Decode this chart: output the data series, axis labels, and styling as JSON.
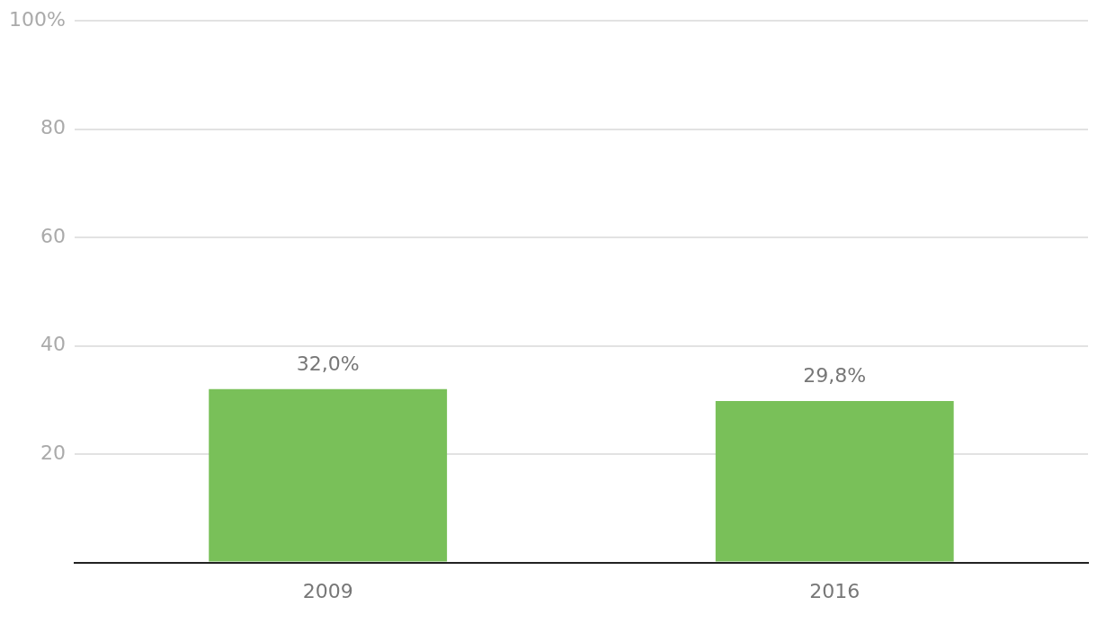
{
  "chart_data": {
    "type": "bar",
    "categories": [
      "2009",
      "2016"
    ],
    "values": [
      32.0,
      29.8
    ],
    "color": "#79c059",
    "value_labels": [
      "32,0%",
      "29,8%"
    ],
    "ylim": [
      0,
      100
    ],
    "yticks": [
      {
        "value": 0,
        "label": null
      },
      20,
      40,
      60,
      80,
      {
        "value": 100,
        "label": "100%"
      }
    ],
    "grid": "y",
    "legend": false
  }
}
